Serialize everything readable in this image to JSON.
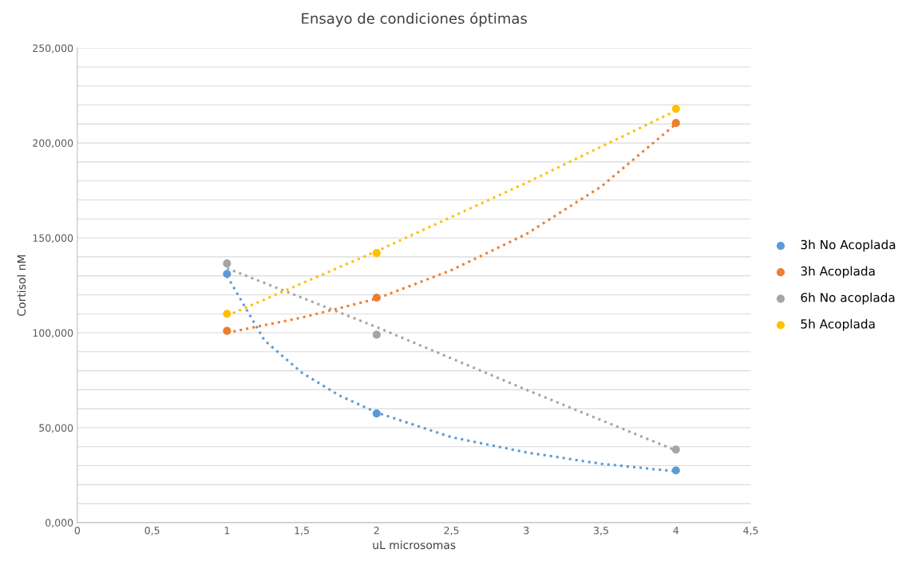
{
  "chart_data": {
    "type": "scatter",
    "title": "Ensayo de condiciones óptimas",
    "xlabel": "uL microsomas",
    "ylabel": "Cortisol nM",
    "xlim": [
      0,
      4.5
    ],
    "xticks": [
      0,
      {
        "value": 0.5,
        "label": "0,5"
      },
      1,
      {
        "value": 1.5,
        "label": "1,5"
      },
      2,
      {
        "value": 2.5,
        "label": "2,5"
      },
      3,
      {
        "value": 3.5,
        "label": "3,5"
      },
      4,
      {
        "value": 4.5,
        "label": "4,5"
      }
    ],
    "ylim": [
      0,
      250
    ],
    "yticks": [
      {
        "value": 0,
        "label": "0,000"
      },
      {
        "value": 10,
        "label": null
      },
      {
        "value": 20,
        "label": null
      },
      {
        "value": 30,
        "label": null
      },
      {
        "value": 40,
        "label": null
      },
      {
        "value": 50,
        "label": "50,000"
      },
      {
        "value": 60,
        "label": null
      },
      {
        "value": 70,
        "label": null
      },
      {
        "value": 80,
        "label": null
      },
      {
        "value": 90,
        "label": null
      },
      {
        "value": 100,
        "label": "100,000"
      },
      {
        "value": 110,
        "label": null
      },
      {
        "value": 120,
        "label": null
      },
      {
        "value": 130,
        "label": null
      },
      {
        "value": 140,
        "label": null
      },
      {
        "value": 150,
        "label": "150,000"
      },
      {
        "value": 160,
        "label": null
      },
      {
        "value": 170,
        "label": null
      },
      {
        "value": 180,
        "label": null
      },
      {
        "value": 190,
        "label": null
      },
      {
        "value": 200,
        "label": "200,000"
      },
      {
        "value": 210,
        "label": null
      },
      {
        "value": 220,
        "label": null
      },
      {
        "value": 230,
        "label": null
      },
      {
        "value": 240,
        "label": null
      },
      {
        "value": 250,
        "label": "250,000"
      }
    ],
    "grid": "y",
    "legend": "right",
    "marker": "circle",
    "series": [
      {
        "type": "line",
        "marker": "none",
        "line_style": "dotted",
        "color": "#5b9bd5",
        "x": [
          1,
          1.25,
          1.5,
          1.75,
          2,
          2.5,
          3,
          3.5,
          4
        ],
        "values": [
          130,
          96,
          79,
          67,
          58,
          45,
          37,
          31,
          27
        ]
      },
      {
        "type": "line",
        "marker": "none",
        "line_style": "dotted",
        "color": "#ed7d31",
        "x": [
          1,
          1.5,
          2,
          2.5,
          3,
          3.5,
          4
        ],
        "values": [
          100,
          108,
          118,
          133,
          152,
          177,
          210
        ]
      },
      {
        "type": "line",
        "marker": "none",
        "line_style": "dotted",
        "color": "#a5a5a5",
        "x": [
          1,
          2,
          3,
          4
        ],
        "values": [
          134,
          103,
          70,
          38
        ]
      },
      {
        "type": "line",
        "marker": "none",
        "line_style": "dotted",
        "color": "#ffc000",
        "x": [
          1,
          2,
          3,
          4
        ],
        "values": [
          109,
          143,
          179,
          217
        ]
      },
      {
        "name": "3h No Acoplada",
        "color": "#5b9bd5",
        "x": [
          1,
          2,
          4
        ],
        "values": [
          131,
          57.5,
          27.5
        ]
      },
      {
        "name": "3h Acoplada",
        "color": "#ed7d31",
        "x": [
          1,
          2,
          4
        ],
        "values": [
          101,
          118.5,
          210.5
        ]
      },
      {
        "name": "6h No acoplada",
        "color": "#a5a5a5",
        "x": [
          1,
          2,
          4
        ],
        "values": [
          136.5,
          99,
          38.5
        ]
      },
      {
        "name": "5h Acoplada",
        "color": "#ffc000",
        "x": [
          1,
          2,
          4
        ],
        "values": [
          110,
          142,
          218
        ]
      }
    ]
  }
}
